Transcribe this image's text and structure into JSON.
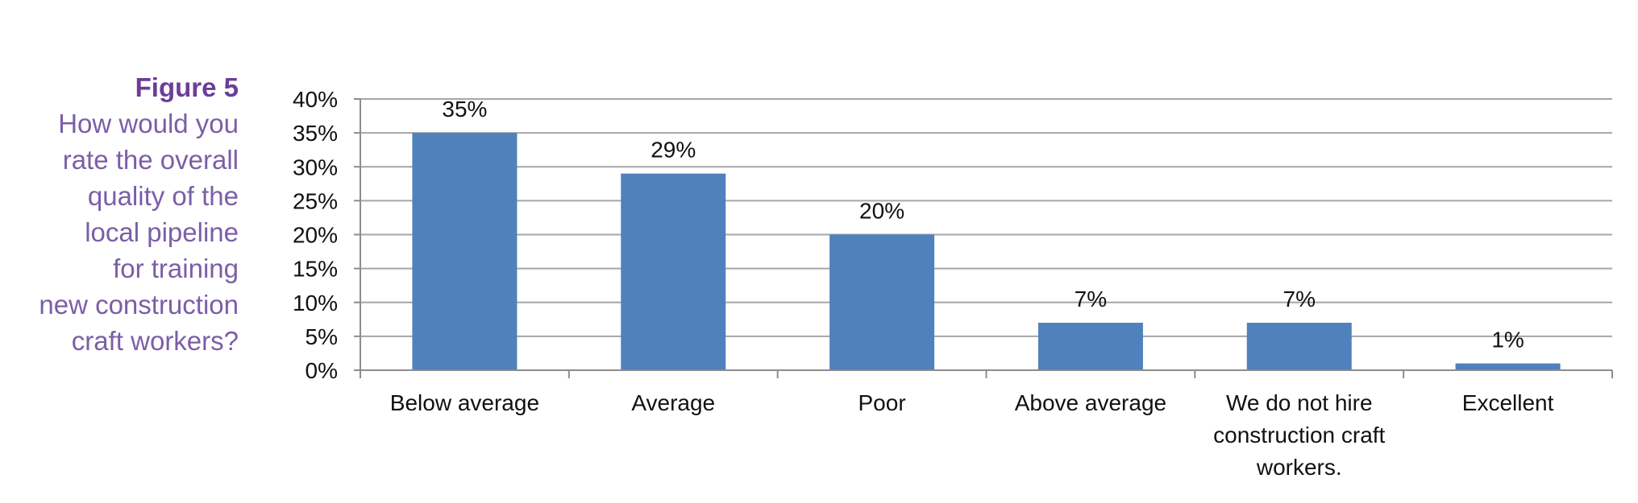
{
  "figure": {
    "label": "Figure 5",
    "question_lines": [
      "How would you",
      "rate the overall",
      "quality of the",
      "local pipeline",
      "for training",
      "new construction",
      "craft workers?"
    ]
  },
  "chart_data": {
    "type": "bar",
    "title": "",
    "xlabel": "",
    "ylabel": "",
    "categories": [
      "Below average",
      "Average",
      "Poor",
      "Above average",
      "We do not hire construction craft workers.",
      "Excellent"
    ],
    "category_lines": [
      [
        "Below average"
      ],
      [
        "Average"
      ],
      [
        "Poor"
      ],
      [
        "Above average"
      ],
      [
        "We do not hire",
        "construction craft",
        "workers."
      ],
      [
        "Excellent"
      ]
    ],
    "values": [
      35,
      29,
      20,
      7,
      7,
      1
    ],
    "data_labels": [
      "35%",
      "29%",
      "20%",
      "7%",
      "7%",
      "1%"
    ],
    "ylim": [
      0,
      40
    ],
    "yticks": [
      0,
      5,
      10,
      15,
      20,
      25,
      30,
      35,
      40
    ],
    "ytick_labels": [
      "0%",
      "5%",
      "10%",
      "15%",
      "20%",
      "25%",
      "30%",
      "35%",
      "40%"
    ],
    "grid": true,
    "legend": "none",
    "bar_color": "#4f81bd",
    "grid_color": "#a6a6a6",
    "axis_color": "#8c8c8c"
  }
}
